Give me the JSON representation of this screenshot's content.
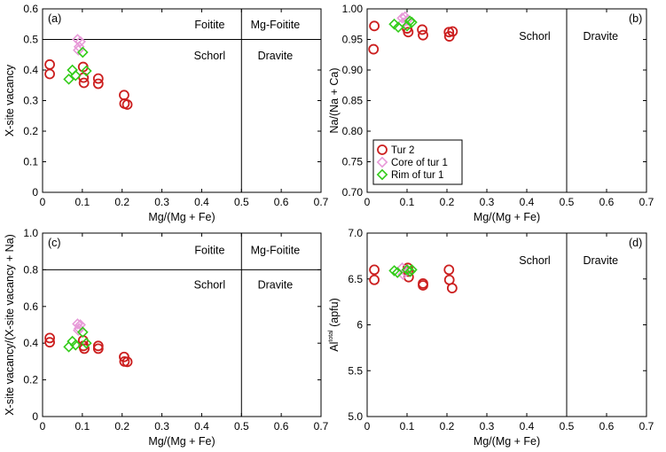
{
  "chart_data": [
    {
      "id": "a",
      "type": "scatter",
      "panel_label": "(a)",
      "xlabel": "Mg/(Mg + Fe)",
      "ylabel": "X-site vacancy",
      "xlim": [
        0,
        0.7
      ],
      "ylim": [
        0,
        0.6
      ],
      "xticks": [
        "0",
        "0.1",
        "0.2",
        "0.3",
        "0.4",
        "0.5",
        "0.6",
        "0.7"
      ],
      "yticks": [
        "0",
        "0.1",
        "0.2",
        "0.3",
        "0.4",
        "0.5",
        "0.6"
      ],
      "boundaries": {
        "horizontal": 0.5,
        "vertical": 0.5
      },
      "regions": [
        "Foitite",
        "Mg-Foitite",
        "Schorl",
        "Dravite"
      ],
      "series": [
        {
          "name": "Tur 2",
          "marker": "circle",
          "color": "#cc1f1f",
          "points": [
            [
              0.018,
              0.418
            ],
            [
              0.018,
              0.387
            ],
            [
              0.102,
              0.41
            ],
            [
              0.103,
              0.375
            ],
            [
              0.104,
              0.358
            ],
            [
              0.14,
              0.372
            ],
            [
              0.14,
              0.355
            ],
            [
              0.205,
              0.318
            ],
            [
              0.206,
              0.29
            ],
            [
              0.213,
              0.287
            ]
          ]
        },
        {
          "name": "Core of tur 1",
          "marker": "diamond",
          "color": "#e79ad8",
          "points": [
            [
              0.088,
              0.5
            ],
            [
              0.095,
              0.493
            ],
            [
              0.092,
              0.476
            ],
            [
              0.09,
              0.465
            ]
          ]
        },
        {
          "name": "Rim of tur 1",
          "marker": "diamond",
          "color": "#33cc1a",
          "points": [
            [
              0.066,
              0.37
            ],
            [
              0.075,
              0.4
            ],
            [
              0.083,
              0.382
            ],
            [
              0.101,
              0.458
            ],
            [
              0.11,
              0.397
            ]
          ]
        }
      ]
    },
    {
      "id": "b",
      "type": "scatter",
      "panel_label": "(b)",
      "xlabel": "Mg/(Mg + Fe)",
      "ylabel": "Na/(Na + Ca)",
      "xlim": [
        0,
        0.7
      ],
      "ylim": [
        0.7,
        1.0
      ],
      "xticks": [
        "0",
        "0.1",
        "0.2",
        "0.3",
        "0.4",
        "0.5",
        "0.6",
        "0.7"
      ],
      "yticks": [
        "0.70",
        "0.75",
        "0.80",
        "0.85",
        "0.90",
        "0.95",
        "1.00"
      ],
      "boundaries": {
        "vertical": 0.5
      },
      "regions": [
        "Schorl",
        "Dravite"
      ],
      "legend": {
        "placement": "center-left",
        "entries": [
          "Tur 2",
          "Core of tur 1",
          "Rim of tur 1"
        ]
      },
      "series": [
        {
          "name": "Tur 2",
          "marker": "circle",
          "color": "#cc1f1f",
          "points": [
            [
              0.018,
              0.972
            ],
            [
              0.016,
              0.934
            ],
            [
              0.1,
              0.968
            ],
            [
              0.103,
              0.962
            ],
            [
              0.138,
              0.966
            ],
            [
              0.14,
              0.957
            ],
            [
              0.205,
              0.962
            ],
            [
              0.206,
              0.955
            ],
            [
              0.214,
              0.963
            ]
          ]
        },
        {
          "name": "Core of tur 1",
          "marker": "diamond",
          "color": "#e79ad8",
          "points": [
            [
              0.088,
              0.985
            ],
            [
              0.095,
              0.987
            ],
            [
              0.1,
              0.981
            ],
            [
              0.09,
              0.977
            ]
          ]
        },
        {
          "name": "Rim of tur 1",
          "marker": "diamond",
          "color": "#33cc1a",
          "points": [
            [
              0.068,
              0.975
            ],
            [
              0.078,
              0.97
            ],
            [
              0.1,
              0.972
            ],
            [
              0.107,
              0.98
            ],
            [
              0.112,
              0.978
            ]
          ]
        }
      ]
    },
    {
      "id": "c",
      "type": "scatter",
      "panel_label": "(c)",
      "xlabel": "Mg/(Mg + Fe)",
      "ylabel": "X-site vacancy/(X-site vacancy + Na)",
      "xlim": [
        0,
        0.7
      ],
      "ylim": [
        0,
        1.0
      ],
      "xticks": [
        "0",
        "0.1",
        "0.2",
        "0.3",
        "0.4",
        "0.5",
        "0.6",
        "0.7"
      ],
      "yticks": [
        "0",
        "0.2",
        "0.4",
        "0.6",
        "0.8",
        "1.0"
      ],
      "boundaries": {
        "horizontal": 0.8,
        "vertical": 0.5
      },
      "regions": [
        "Foitite",
        "Mg-Foitite",
        "Schorl",
        "Dravite"
      ],
      "series": [
        {
          "name": "Tur 2",
          "marker": "circle",
          "color": "#cc1f1f",
          "points": [
            [
              0.018,
              0.428
            ],
            [
              0.018,
              0.405
            ],
            [
              0.102,
              0.415
            ],
            [
              0.103,
              0.385
            ],
            [
              0.105,
              0.37
            ],
            [
              0.14,
              0.385
            ],
            [
              0.14,
              0.37
            ],
            [
              0.205,
              0.325
            ],
            [
              0.206,
              0.3
            ],
            [
              0.213,
              0.298
            ]
          ]
        },
        {
          "name": "Core of tur 1",
          "marker": "diamond",
          "color": "#e79ad8",
          "points": [
            [
              0.088,
              0.505
            ],
            [
              0.095,
              0.5
            ],
            [
              0.092,
              0.48
            ],
            [
              0.09,
              0.47
            ]
          ]
        },
        {
          "name": "Rim of tur 1",
          "marker": "diamond",
          "color": "#33cc1a",
          "points": [
            [
              0.066,
              0.38
            ],
            [
              0.075,
              0.41
            ],
            [
              0.083,
              0.39
            ],
            [
              0.101,
              0.46
            ],
            [
              0.11,
              0.4
            ]
          ]
        }
      ]
    },
    {
      "id": "d",
      "type": "scatter",
      "panel_label": "(d)",
      "xlabel": "Mg/(Mg + Fe)",
      "ylabel_main": "Al",
      "ylabel_sup": "total",
      "ylabel_rest": " (apfu)",
      "xlim": [
        0,
        0.7
      ],
      "ylim": [
        5.0,
        7.0
      ],
      "xticks": [
        "0",
        "0.1",
        "0.2",
        "0.3",
        "0.4",
        "0.5",
        "0.6",
        "0.7"
      ],
      "yticks": [
        "5.0",
        "5.5",
        "6",
        "6.5",
        "7.0"
      ],
      "boundaries": {
        "vertical": 0.5
      },
      "regions": [
        "Schorl",
        "Dravite"
      ],
      "series": [
        {
          "name": "Tur 2",
          "marker": "circle",
          "color": "#cc1f1f",
          "points": [
            [
              0.018,
              6.6
            ],
            [
              0.018,
              6.49
            ],
            [
              0.102,
              6.62
            ],
            [
              0.103,
              6.58
            ],
            [
              0.104,
              6.52
            ],
            [
              0.14,
              6.45
            ],
            [
              0.14,
              6.43
            ],
            [
              0.205,
              6.6
            ],
            [
              0.206,
              6.49
            ],
            [
              0.213,
              6.4
            ]
          ]
        },
        {
          "name": "Core of tur 1",
          "marker": "diamond",
          "color": "#e79ad8",
          "points": [
            [
              0.088,
              6.62
            ],
            [
              0.095,
              6.58
            ],
            [
              0.09,
              6.55
            ],
            [
              0.1,
              6.6
            ]
          ]
        },
        {
          "name": "Rim of tur 1",
          "marker": "diamond",
          "color": "#33cc1a",
          "points": [
            [
              0.068,
              6.59
            ],
            [
              0.076,
              6.57
            ],
            [
              0.1,
              6.6
            ],
            [
              0.108,
              6.58
            ],
            [
              0.112,
              6.6
            ]
          ]
        }
      ]
    }
  ]
}
